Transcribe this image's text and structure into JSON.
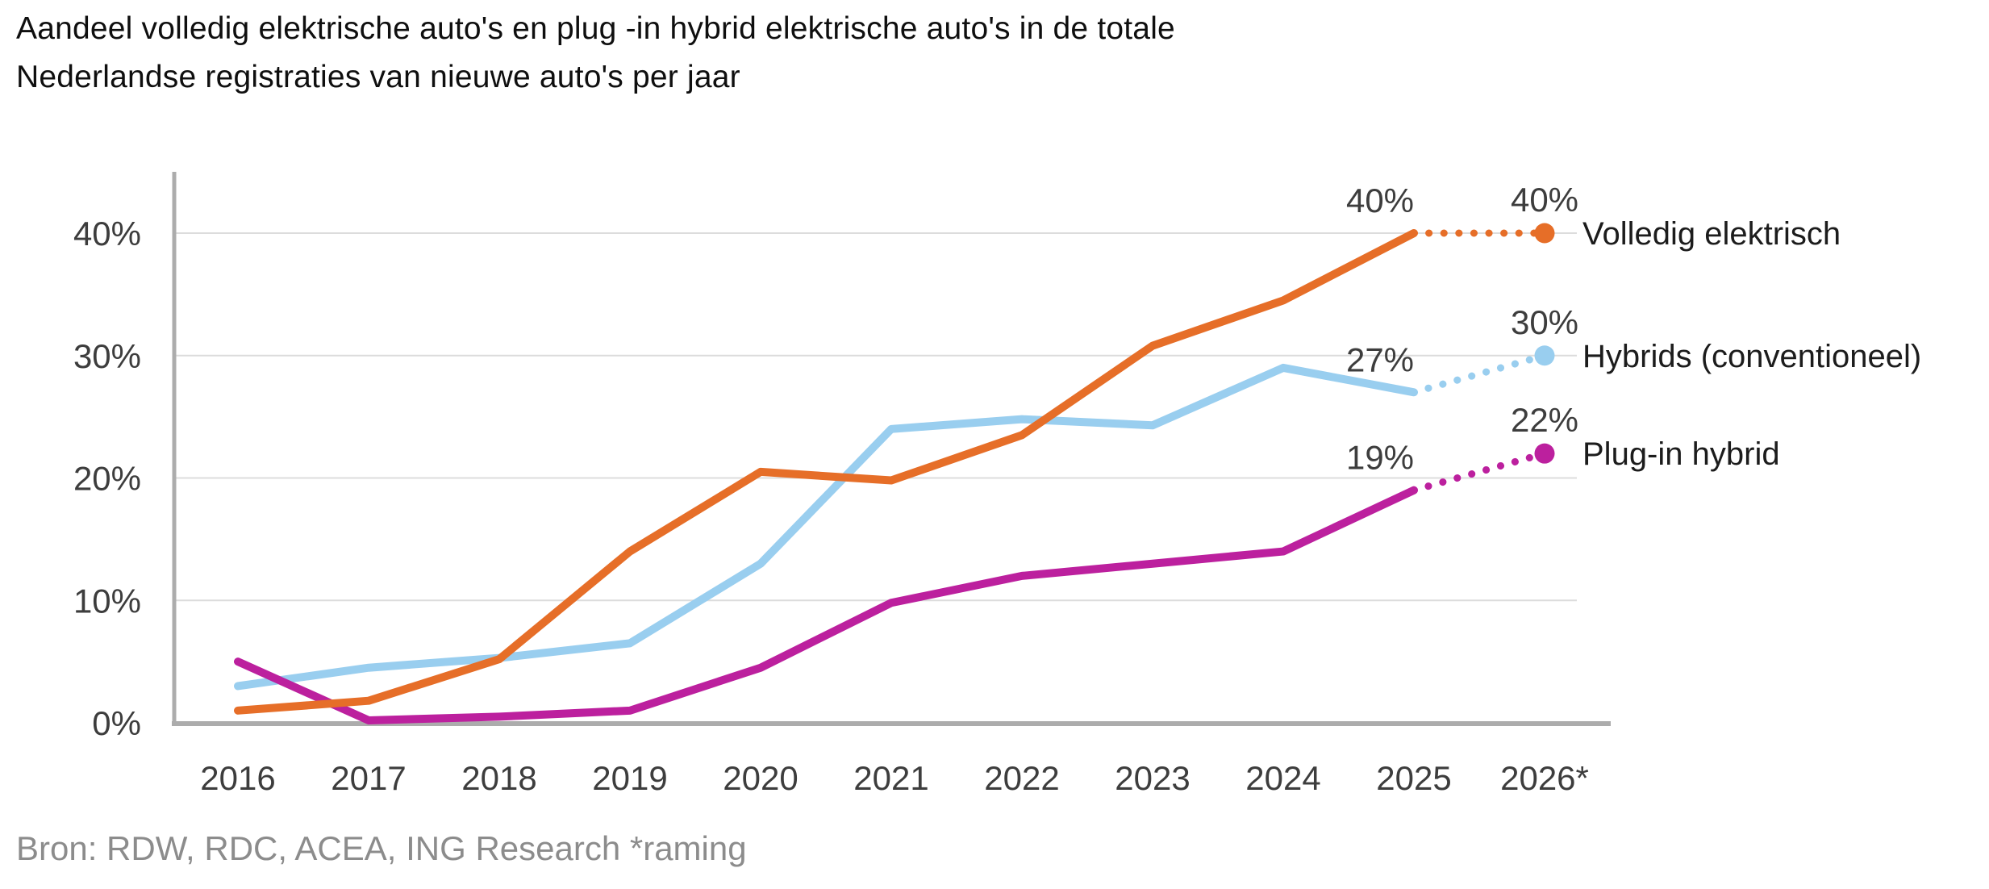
{
  "title": {
    "line1": "Aandeel volledig elektrische auto's en plug -in hybrid elektrische auto's in de totale",
    "line2": "Nederlandse registraties van nieuwe auto's per jaar"
  },
  "source": "Bron: RDW, RDC, ACEA, ING Research *raming",
  "colors": {
    "grid": "#dcdcdc",
    "axis": "#acacac",
    "tick_text": "#3d3d3d",
    "title_text": "#0f0f0f",
    "source_text": "#8c8c8c"
  },
  "chart_data": {
    "type": "line",
    "x_tick_labels": [
      "2016",
      "2017",
      "2018",
      "2019",
      "2020",
      "2021",
      "2022",
      "2023",
      "2024",
      "2025",
      "2026*"
    ],
    "y_ticks": [
      {
        "value": 0,
        "label": "0%"
      },
      {
        "value": 10,
        "label": "10%"
      },
      {
        "value": 20,
        "label": "20%"
      },
      {
        "value": 30,
        "label": "30%"
      },
      {
        "value": 40,
        "label": "40%"
      }
    ],
    "ylim": [
      0,
      45
    ],
    "grid": "horizontal",
    "legend_position": "right-of-line-ends",
    "forecast_year": "2026*",
    "forecast_style": "dotted",
    "series": [
      {
        "name": "Volledig elektrisch",
        "color": "#e66e28",
        "years": [
          2016,
          2017,
          2018,
          2019,
          2020,
          2021,
          2022,
          2023,
          2024,
          2025
        ],
        "values": [
          1,
          1.8,
          5.2,
          14,
          20.5,
          19.8,
          23.5,
          30.8,
          34.5,
          40
        ],
        "forecast_2026": 40,
        "label_2025": "40%",
        "label_2026": "40%"
      },
      {
        "name": "Hybrids (conventioneel)",
        "color": "#99ceef",
        "years": [
          2016,
          2017,
          2018,
          2019,
          2020,
          2021,
          2022,
          2023,
          2024,
          2025
        ],
        "values": [
          3,
          4.5,
          5.3,
          6.5,
          13,
          24,
          24.8,
          24.3,
          29,
          27
        ],
        "forecast_2026": 30,
        "label_2025": "27%",
        "label_2026": "30%"
      },
      {
        "name": "Plug-in hybrid",
        "color": "#bc209e",
        "years": [
          2016,
          2017,
          2018,
          2019,
          2020,
          2021,
          2022,
          2023,
          2024,
          2025
        ],
        "values": [
          5,
          0.2,
          0.5,
          1,
          4.5,
          9.8,
          12,
          13,
          14,
          19
        ],
        "forecast_2026": 22,
        "label_2025": "19%",
        "label_2026": "22%"
      }
    ]
  }
}
